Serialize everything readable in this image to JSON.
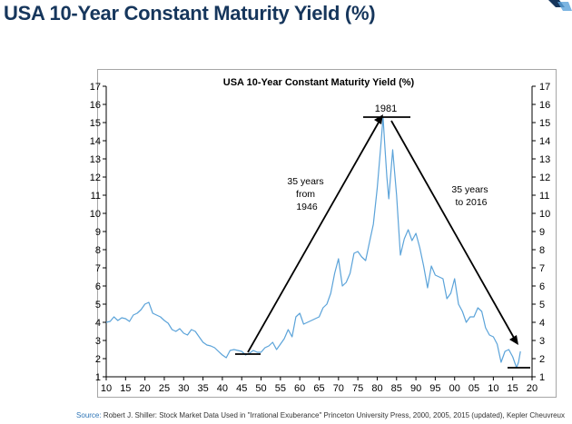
{
  "page": {
    "title": "USA 10-Year Constant Maturity Yield (%)",
    "source_prefix": "Source:",
    "source_text": "Robert J. Shiller: Stock Market Data Used in \"Irrational Exuberance\" Princeton University Press, 2000, 2005, 2015 (updated), Kepler Cheuvreux"
  },
  "colors": {
    "title": "#16365c",
    "series": "#5ba3d9",
    "annotation": "#000000"
  },
  "chart_data": {
    "type": "line",
    "title": "USA 10-Year Constant Maturity Yield (%)",
    "xlabel": "",
    "ylabel": "",
    "xlim": [
      1910,
      2020
    ],
    "ylim": [
      1,
      17
    ],
    "x_ticks": [
      1910,
      1915,
      1920,
      1925,
      1930,
      1935,
      1940,
      1945,
      1950,
      1955,
      1960,
      1965,
      1970,
      1975,
      1980,
      1985,
      1990,
      1995,
      2000,
      2005,
      2010,
      2015,
      2020
    ],
    "x_tick_labels": [
      "10",
      "15",
      "20",
      "25",
      "30",
      "35",
      "40",
      "45",
      "50",
      "55",
      "60",
      "65",
      "70",
      "75",
      "80",
      "85",
      "90",
      "95",
      "00",
      "05",
      "10",
      "15",
      "20"
    ],
    "y_ticks": [
      1,
      2,
      3,
      4,
      5,
      6,
      7,
      8,
      9,
      10,
      11,
      12,
      13,
      14,
      15,
      16,
      17
    ],
    "y_tick_labels": [
      "1",
      "2",
      "3",
      "4",
      "5",
      "6",
      "7",
      "8",
      "9",
      "10",
      "11",
      "12",
      "13",
      "14",
      "15",
      "16",
      "17"
    ],
    "grid": false,
    "series": [
      {
        "name": "10-Year Yield",
        "x": [
          1910,
          1911,
          1912,
          1913,
          1914,
          1915,
          1916,
          1917,
          1918,
          1919,
          1920,
          1921,
          1922,
          1923,
          1924,
          1925,
          1926,
          1927,
          1928,
          1929,
          1930,
          1931,
          1932,
          1933,
          1934,
          1935,
          1936,
          1937,
          1938,
          1939,
          1940,
          1941,
          1942,
          1943,
          1944,
          1945,
          1946,
          1947,
          1948,
          1949,
          1950,
          1951,
          1952,
          1953,
          1954,
          1955,
          1956,
          1957,
          1958,
          1959,
          1960,
          1961,
          1962,
          1963,
          1964,
          1965,
          1966,
          1967,
          1968,
          1969,
          1970,
          1971,
          1972,
          1973,
          1974,
          1975,
          1976,
          1977,
          1978,
          1979,
          1980,
          1981,
          1981.5,
          1982,
          1982.5,
          1983,
          1984,
          1985,
          1986,
          1987,
          1988,
          1989,
          1990,
          1991,
          1992,
          1993,
          1994,
          1995,
          1996,
          1997,
          1998,
          1999,
          2000,
          2001,
          2002,
          2003,
          2004,
          2005,
          2006,
          2007,
          2008,
          2009,
          2010,
          2011,
          2012,
          2013,
          2014,
          2015,
          2016,
          2016.5,
          2017
        ],
        "values": [
          4.0,
          4.05,
          4.3,
          4.1,
          4.25,
          4.2,
          4.05,
          4.4,
          4.5,
          4.7,
          5.0,
          5.1,
          4.5,
          4.4,
          4.3,
          4.1,
          3.95,
          3.6,
          3.5,
          3.65,
          3.4,
          3.3,
          3.6,
          3.5,
          3.2,
          2.9,
          2.75,
          2.7,
          2.6,
          2.4,
          2.2,
          2.05,
          2.45,
          2.5,
          2.45,
          2.4,
          2.2,
          2.3,
          2.45,
          2.35,
          2.35,
          2.6,
          2.7,
          2.9,
          2.5,
          2.8,
          3.1,
          3.6,
          3.2,
          4.3,
          4.5,
          3.9,
          4.0,
          4.1,
          4.2,
          4.3,
          4.8,
          5.0,
          5.6,
          6.7,
          7.5,
          6.0,
          6.2,
          6.7,
          7.8,
          7.9,
          7.6,
          7.4,
          8.4,
          9.4,
          11.4,
          13.9,
          15.3,
          13.6,
          12.0,
          10.8,
          13.5,
          11.0,
          7.7,
          8.6,
          9.1,
          8.5,
          8.9,
          8.1,
          7.1,
          5.9,
          7.1,
          6.6,
          6.5,
          6.4,
          5.3,
          5.6,
          6.4,
          5.0,
          4.6,
          4.0,
          4.3,
          4.3,
          4.8,
          4.6,
          3.7,
          3.3,
          3.2,
          2.8,
          1.8,
          2.4,
          2.5,
          2.1,
          1.5,
          1.8,
          2.4
        ]
      }
    ],
    "annotations": [
      {
        "label": "1981"
      },
      {
        "label_lines": [
          "35 years",
          "from",
          "1946"
        ]
      },
      {
        "label_lines": [
          "35 years",
          "to 2016"
        ]
      }
    ]
  }
}
